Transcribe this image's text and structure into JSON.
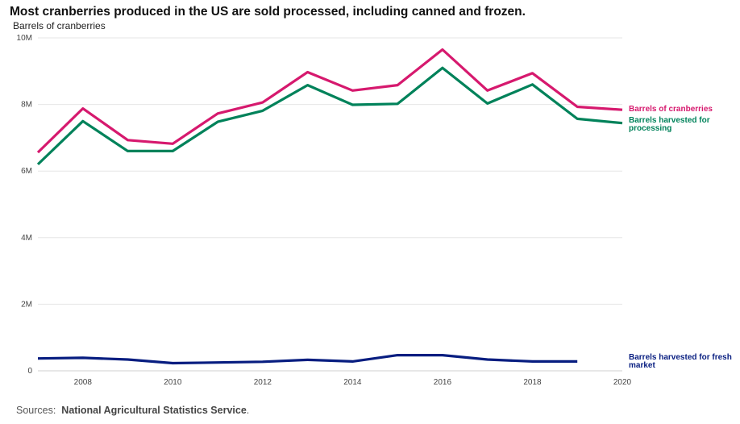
{
  "chart_data": {
    "type": "line",
    "title": "Most cranberries produced in the US are sold processed, including canned and frozen.",
    "ylabel": "Barrels of cranberries",
    "x": [
      2007,
      2008,
      2009,
      2010,
      2011,
      2012,
      2013,
      2014,
      2015,
      2016,
      2017,
      2018,
      2019,
      2020
    ],
    "xlim": [
      2007,
      2020
    ],
    "ylim": [
      0,
      10000000
    ],
    "xticks": [
      2008,
      2010,
      2012,
      2014,
      2016,
      2018,
      2020
    ],
    "xtick_labels": [
      "2008",
      "2010",
      "2012",
      "2014",
      "2016",
      "2018",
      "2020"
    ],
    "yticks": [
      0,
      2000000,
      4000000,
      6000000,
      8000000,
      10000000
    ],
    "ytick_labels": [
      "0",
      "2M",
      "4M",
      "6M",
      "8M",
      "10M"
    ],
    "grid": true,
    "legend": "inline-right",
    "series": [
      {
        "name": "Barrels of cranberries",
        "color": "#d6196e",
        "values": [
          6560000,
          7880000,
          6930000,
          6820000,
          7730000,
          8060000,
          8970000,
          8420000,
          8580000,
          9650000,
          8420000,
          8940000,
          7930000,
          7840000
        ]
      },
      {
        "name": "Barrels harvested for processing",
        "color": "#00825a",
        "values": [
          6200000,
          7500000,
          6600000,
          6600000,
          7480000,
          7810000,
          8580000,
          7990000,
          8020000,
          9100000,
          8030000,
          8600000,
          7570000,
          7440000
        ]
      },
      {
        "name": "Barrels harvested for fresh market",
        "color": "#071d80",
        "values": [
          370000,
          390000,
          340000,
          230000,
          250000,
          270000,
          330000,
          280000,
          470000,
          470000,
          340000,
          280000,
          280000,
          null
        ]
      }
    ]
  },
  "labels": {
    "series1": "Barrels of cranberries",
    "series2a": "Barrels harvested for",
    "series2b": "processing",
    "series3a": "Barrels harvested for fresh",
    "series3b": "market"
  },
  "source": {
    "prefix": "Sources:",
    "name": "National Agricultural Statistics Service",
    "suffix": "."
  }
}
